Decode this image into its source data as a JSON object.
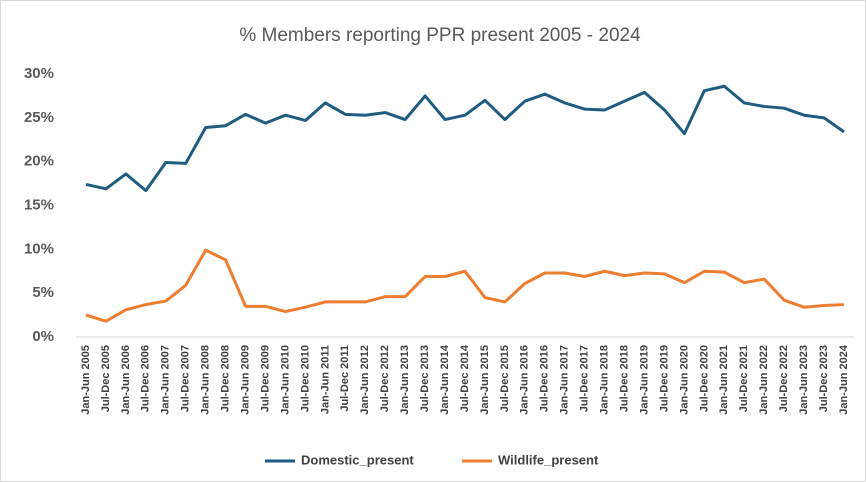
{
  "chart_data": {
    "type": "line",
    "title": "% Members reporting PPR present 2005 - 2024",
    "categories": [
      "Jan-Jun 2005",
      "Jul-Dec 2005",
      "Jan-Jun 2006",
      "Jul-Dec 2006",
      "Jan-Jun 2007",
      "Jul-Dec 2007",
      "Jan-Jun 2008",
      "Jul-Dec 2008",
      "Jan-Jun 2009",
      "Jul-Dec 2009",
      "Jan-Jun 2010",
      "Jul-Dec 2010",
      "Jan-Jun 2011",
      "Jul-Dec 2011",
      "Jan-Jun 2012",
      "Jul-Dec 2012",
      "Jan-Jun 2013",
      "Jul-Dec 2013",
      "Jan-Jun 2014",
      "Jul-Dec 2014",
      "Jan-Jun 2015",
      "Jul-Dec 2015",
      "Jan-Jun 2016",
      "Jul-Dec 2016",
      "Jan-Jun 2017",
      "Jul-Dec 2017",
      "Jan-Jun 2018",
      "Jul-Dec 2018",
      "Jan-Jun 2019",
      "Jul-Dec 2019",
      "Jan-Jun 2020",
      "Jul-Dec 2020",
      "Jan-Jun 2021",
      "Jul-Dec 2021",
      "Jan-Jun 2022",
      "Jul-Dec 2022",
      "Jan-Jun 2023",
      "Jul-Dec 2023",
      "Jan-Jun 2024"
    ],
    "series": [
      {
        "name": "Domestic_present",
        "color": "#1f5c7f",
        "values": [
          17.4,
          16.9,
          18.6,
          16.7,
          19.9,
          19.8,
          23.9,
          24.1,
          25.4,
          24.4,
          25.3,
          24.7,
          26.7,
          25.4,
          25.3,
          25.6,
          24.8,
          27.5,
          24.8,
          25.3,
          27.0,
          24.8,
          26.9,
          27.7,
          26.7,
          26.0,
          25.9,
          26.9,
          27.9,
          25.9,
          23.2,
          28.1,
          28.6,
          26.7,
          26.3,
          26.1,
          25.3,
          25.0,
          23.4
        ]
      },
      {
        "name": "Wildlife_present",
        "color": "#ed7d31",
        "values": [
          2.5,
          1.8,
          3.1,
          3.7,
          4.1,
          5.9,
          9.9,
          8.8,
          3.5,
          3.5,
          2.9,
          3.4,
          4.0,
          4.0,
          4.0,
          4.6,
          4.6,
          6.9,
          6.9,
          7.5,
          4.5,
          4.0,
          6.1,
          7.3,
          7.3,
          6.9,
          7.5,
          7.0,
          7.3,
          7.2,
          6.2,
          7.5,
          7.4,
          6.2,
          6.6,
          4.2,
          3.4,
          3.6,
          3.7
        ]
      }
    ],
    "ylim": [
      0,
      30
    ],
    "yticks": [
      {
        "value": 0,
        "label": "0%"
      },
      {
        "value": 5,
        "label": "5%"
      },
      {
        "value": 10,
        "label": "10%"
      },
      {
        "value": 15,
        "label": "15%"
      },
      {
        "value": 20,
        "label": "20%"
      },
      {
        "value": 25,
        "label": "25%"
      },
      {
        "value": 30,
        "label": "30%"
      }
    ],
    "grid": false,
    "legend": "bottom"
  }
}
